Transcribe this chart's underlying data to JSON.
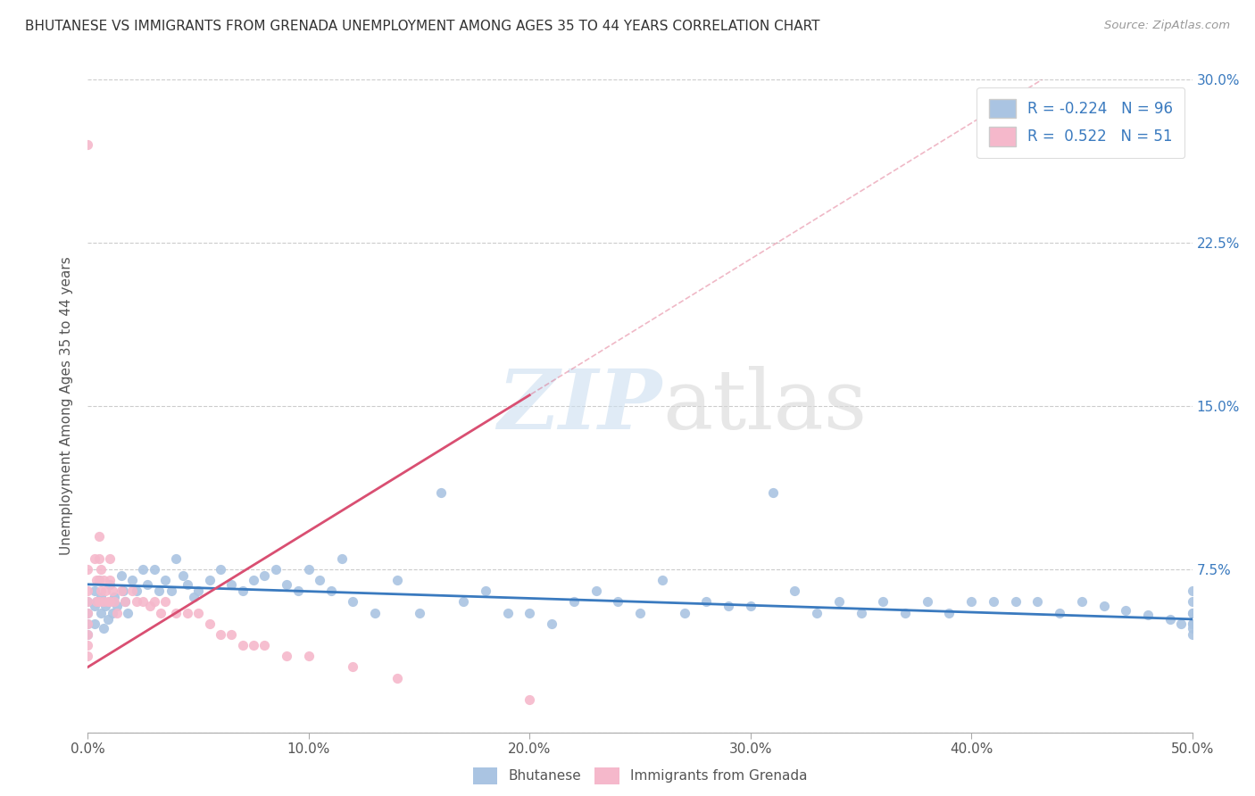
{
  "title": "BHUTANESE VS IMMIGRANTS FROM GRENADA UNEMPLOYMENT AMONG AGES 35 TO 44 YEARS CORRELATION CHART",
  "source": "Source: ZipAtlas.com",
  "ylabel": "Unemployment Among Ages 35 to 44 years",
  "xlim": [
    0.0,
    0.5
  ],
  "ylim": [
    0.0,
    0.3
  ],
  "xticks": [
    0.0,
    0.1,
    0.2,
    0.3,
    0.4,
    0.5
  ],
  "xtick_labels": [
    "0.0%",
    "10.0%",
    "20.0%",
    "30.0%",
    "40.0%",
    "50.0%"
  ],
  "yticks": [
    0.0,
    0.075,
    0.15,
    0.225,
    0.3
  ],
  "ytick_labels_right": [
    "",
    "7.5%",
    "15.0%",
    "22.5%",
    "30.0%"
  ],
  "legend_labels": [
    "Bhutanese",
    "Immigrants from Grenada"
  ],
  "R_blue": -0.224,
  "N_blue": 96,
  "R_pink": 0.522,
  "N_pink": 51,
  "blue_color": "#aac4e2",
  "pink_color": "#f5b8cb",
  "blue_line_color": "#3a7abf",
  "pink_line_color": "#d94f72",
  "watermark_zip": "ZIP",
  "watermark_atlas": "atlas",
  "blue_x": [
    0.0,
    0.0,
    0.0,
    0.0,
    0.003,
    0.003,
    0.003,
    0.004,
    0.005,
    0.006,
    0.006,
    0.007,
    0.008,
    0.009,
    0.01,
    0.01,
    0.011,
    0.012,
    0.013,
    0.015,
    0.016,
    0.017,
    0.018,
    0.02,
    0.022,
    0.025,
    0.027,
    0.03,
    0.032,
    0.035,
    0.038,
    0.04,
    0.043,
    0.045,
    0.048,
    0.05,
    0.055,
    0.06,
    0.065,
    0.07,
    0.075,
    0.08,
    0.085,
    0.09,
    0.095,
    0.1,
    0.105,
    0.11,
    0.115,
    0.12,
    0.13,
    0.14,
    0.15,
    0.16,
    0.17,
    0.18,
    0.19,
    0.2,
    0.21,
    0.22,
    0.23,
    0.24,
    0.25,
    0.26,
    0.27,
    0.28,
    0.29,
    0.3,
    0.31,
    0.32,
    0.33,
    0.34,
    0.35,
    0.36,
    0.37,
    0.38,
    0.39,
    0.4,
    0.41,
    0.42,
    0.43,
    0.44,
    0.45,
    0.46,
    0.47,
    0.48,
    0.49,
    0.495,
    0.5,
    0.5,
    0.5,
    0.5,
    0.5,
    0.5,
    0.5,
    0.5
  ],
  "blue_y": [
    0.06,
    0.055,
    0.05,
    0.045,
    0.065,
    0.058,
    0.05,
    0.06,
    0.07,
    0.062,
    0.055,
    0.048,
    0.058,
    0.052,
    0.068,
    0.06,
    0.055,
    0.062,
    0.058,
    0.072,
    0.065,
    0.06,
    0.055,
    0.07,
    0.065,
    0.075,
    0.068,
    0.075,
    0.065,
    0.07,
    0.065,
    0.08,
    0.072,
    0.068,
    0.062,
    0.065,
    0.07,
    0.075,
    0.068,
    0.065,
    0.07,
    0.072,
    0.075,
    0.068,
    0.065,
    0.075,
    0.07,
    0.065,
    0.08,
    0.06,
    0.055,
    0.07,
    0.055,
    0.11,
    0.06,
    0.065,
    0.055,
    0.055,
    0.05,
    0.06,
    0.065,
    0.06,
    0.055,
    0.07,
    0.055,
    0.06,
    0.058,
    0.058,
    0.11,
    0.065,
    0.055,
    0.06,
    0.055,
    0.06,
    0.055,
    0.06,
    0.055,
    0.06,
    0.06,
    0.06,
    0.06,
    0.055,
    0.06,
    0.058,
    0.056,
    0.054,
    0.052,
    0.05,
    0.065,
    0.06,
    0.055,
    0.05,
    0.048,
    0.045,
    0.05,
    0.055
  ],
  "pink_x": [
    0.0,
    0.0,
    0.0,
    0.0,
    0.0,
    0.0,
    0.0,
    0.0,
    0.0,
    0.003,
    0.004,
    0.004,
    0.005,
    0.005,
    0.005,
    0.005,
    0.006,
    0.006,
    0.007,
    0.007,
    0.008,
    0.009,
    0.01,
    0.01,
    0.01,
    0.011,
    0.012,
    0.013,
    0.015,
    0.017,
    0.02,
    0.022,
    0.025,
    0.028,
    0.03,
    0.033,
    0.035,
    0.04,
    0.045,
    0.05,
    0.055,
    0.06,
    0.065,
    0.07,
    0.075,
    0.08,
    0.09,
    0.1,
    0.12,
    0.14,
    0.2
  ],
  "pink_y": [
    0.27,
    0.075,
    0.065,
    0.06,
    0.055,
    0.05,
    0.045,
    0.04,
    0.035,
    0.08,
    0.07,
    0.06,
    0.09,
    0.08,
    0.07,
    0.06,
    0.075,
    0.065,
    0.07,
    0.06,
    0.065,
    0.06,
    0.08,
    0.07,
    0.06,
    0.065,
    0.06,
    0.055,
    0.065,
    0.06,
    0.065,
    0.06,
    0.06,
    0.058,
    0.06,
    0.055,
    0.06,
    0.055,
    0.055,
    0.055,
    0.05,
    0.045,
    0.045,
    0.04,
    0.04,
    0.04,
    0.035,
    0.035,
    0.03,
    0.025,
    0.015
  ],
  "blue_line_x": [
    0.0,
    0.5
  ],
  "blue_line_y": [
    0.068,
    0.052
  ],
  "pink_line_x_start": 0.0,
  "pink_line_x_end": 0.2,
  "pink_line_y_start": 0.03,
  "pink_line_y_end": 0.155
}
